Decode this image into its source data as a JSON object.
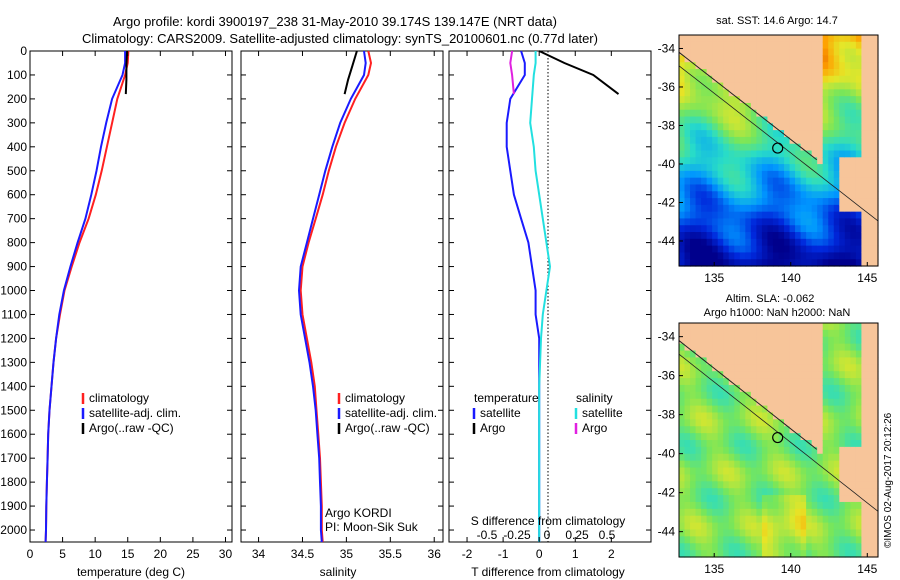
{
  "header": {
    "line1": "Argo profile: kordi 3900197_238 31-May-2010 39.174S 139.147E (NRT data)",
    "line2": "Climatology: CARS2009. Satellite-adjusted climatology: synTS_20100601.nc (0.77d later)"
  },
  "watermark": "©IMOS 02-Aug-2017 20:12:26",
  "colors": {
    "clim": "#ff2020",
    "sat": "#1a1aff",
    "argo": "#000000",
    "sal_sat": "#22e0e0",
    "sal_argo": "#e020e0",
    "land": "#f7c59a",
    "box": "#000000"
  },
  "chart_data": [
    {
      "type": "line",
      "panel": "temperature",
      "xlabel": "temperature (deg C)",
      "xlim": [
        0,
        31
      ],
      "xticks": [
        0,
        5,
        10,
        15,
        20,
        25,
        30
      ],
      "ylim": [
        0,
        2050
      ],
      "yticks": [
        0,
        100,
        200,
        300,
        400,
        500,
        600,
        700,
        800,
        900,
        1000,
        1100,
        1200,
        1300,
        1400,
        1500,
        1600,
        1700,
        1800,
        1900,
        2000
      ],
      "legend": [
        "climatology",
        "satellite-adj. clim.",
        "Argo(..raw -QC)"
      ],
      "series": [
        {
          "name": "climatology",
          "color": "clim",
          "points": [
            [
              15.1,
              0
            ],
            [
              15.0,
              50
            ],
            [
              14.6,
              100
            ],
            [
              13.4,
              200
            ],
            [
              12.6,
              300
            ],
            [
              11.8,
              400
            ],
            [
              11.0,
              500
            ],
            [
              10.1,
              600
            ],
            [
              9.0,
              700
            ],
            [
              7.6,
              800
            ],
            [
              6.4,
              900
            ],
            [
              5.3,
              1000
            ],
            [
              4.6,
              1100
            ],
            [
              4.0,
              1200
            ],
            [
              3.6,
              1300
            ],
            [
              3.3,
              1400
            ],
            [
              3.0,
              1500
            ],
            [
              2.8,
              1600
            ],
            [
              2.7,
              1700
            ],
            [
              2.6,
              1800
            ],
            [
              2.5,
              1900
            ],
            [
              2.45,
              2000
            ],
            [
              2.4,
              2050
            ]
          ]
        },
        {
          "name": "satellite-adj. clim.",
          "color": "sat",
          "points": [
            [
              14.6,
              0
            ],
            [
              14.6,
              50
            ],
            [
              14.2,
              100
            ],
            [
              12.6,
              200
            ],
            [
              11.7,
              300
            ],
            [
              10.9,
              400
            ],
            [
              10.2,
              500
            ],
            [
              9.4,
              600
            ],
            [
              8.5,
              700
            ],
            [
              7.3,
              800
            ],
            [
              6.2,
              900
            ],
            [
              5.2,
              1000
            ],
            [
              4.5,
              1100
            ],
            [
              4.0,
              1200
            ],
            [
              3.6,
              1300
            ],
            [
              3.3,
              1400
            ],
            [
              3.0,
              1500
            ],
            [
              2.8,
              1600
            ],
            [
              2.7,
              1700
            ],
            [
              2.6,
              1800
            ],
            [
              2.5,
              1900
            ],
            [
              2.45,
              2000
            ],
            [
              2.4,
              2050
            ]
          ]
        },
        {
          "name": "Argo(..raw -QC)",
          "color": "argo",
          "points": [
            [
              14.9,
              0
            ],
            [
              14.8,
              60
            ],
            [
              14.8,
              120
            ],
            [
              14.7,
              180
            ]
          ]
        }
      ]
    },
    {
      "type": "line",
      "panel": "salinity",
      "xlabel": "salinity",
      "xlim": [
        33.8,
        36.1
      ],
      "xticks": [
        34,
        34.5,
        35,
        35.5,
        36
      ],
      "ylim": [
        0,
        2050
      ],
      "legend": [
        "climatology",
        "satellite-adj. clim.",
        "Argo(..raw -QC)"
      ],
      "annotation": [
        "Argo KORDI",
        "PI: Moon-Sik Suk"
      ],
      "series": [
        {
          "name": "climatology",
          "color": "clim",
          "points": [
            [
              35.25,
              0
            ],
            [
              35.28,
              50
            ],
            [
              35.25,
              100
            ],
            [
              35.1,
              200
            ],
            [
              34.98,
              300
            ],
            [
              34.88,
              400
            ],
            [
              34.8,
              500
            ],
            [
              34.73,
              600
            ],
            [
              34.65,
              700
            ],
            [
              34.57,
              800
            ],
            [
              34.5,
              900
            ],
            [
              34.48,
              1000
            ],
            [
              34.5,
              1100
            ],
            [
              34.55,
              1200
            ],
            [
              34.6,
              1300
            ],
            [
              34.64,
              1400
            ],
            [
              34.66,
              1500
            ],
            [
              34.68,
              1600
            ],
            [
              34.7,
              1700
            ],
            [
              34.71,
              1800
            ],
            [
              34.72,
              1900
            ],
            [
              34.72,
              2000
            ],
            [
              34.73,
              2050
            ]
          ]
        },
        {
          "name": "satellite-adj. clim.",
          "color": "sat",
          "points": [
            [
              35.2,
              0
            ],
            [
              35.22,
              50
            ],
            [
              35.2,
              100
            ],
            [
              35.05,
              200
            ],
            [
              34.93,
              300
            ],
            [
              34.84,
              400
            ],
            [
              34.76,
              500
            ],
            [
              34.69,
              600
            ],
            [
              34.62,
              700
            ],
            [
              34.55,
              800
            ],
            [
              34.48,
              900
            ],
            [
              34.46,
              1000
            ],
            [
              34.48,
              1100
            ],
            [
              34.53,
              1200
            ],
            [
              34.58,
              1300
            ],
            [
              34.62,
              1400
            ],
            [
              34.65,
              1500
            ],
            [
              34.67,
              1600
            ],
            [
              34.69,
              1700
            ],
            [
              34.7,
              1800
            ],
            [
              34.71,
              1900
            ],
            [
              34.71,
              2000
            ],
            [
              34.72,
              2050
            ]
          ]
        },
        {
          "name": "Argo(..raw -QC)",
          "color": "argo",
          "points": [
            [
              35.12,
              0
            ],
            [
              35.07,
              60
            ],
            [
              35.02,
              120
            ],
            [
              34.98,
              180
            ]
          ]
        }
      ]
    },
    {
      "type": "line",
      "panel": "difference",
      "xlabel": "T difference from climatology",
      "xlabel2": "S difference from climatology",
      "xlim": [
        -2.5,
        3.1
      ],
      "xticks": [
        -2,
        -1,
        0,
        1,
        2
      ],
      "x2ticks": [
        "-0.5",
        "-0.25",
        "0",
        "0.25",
        "0.5"
      ],
      "ylim": [
        0,
        2050
      ],
      "legend_left": [
        "temperature",
        "satellite",
        "Argo"
      ],
      "legend_right": [
        "salinity",
        "satellite",
        "Argo"
      ],
      "series": [
        {
          "name": "temperature satellite",
          "color": "sat",
          "points": [
            [
              -0.5,
              0
            ],
            [
              -0.4,
              50
            ],
            [
              -0.4,
              100
            ],
            [
              -0.8,
              200
            ],
            [
              -0.9,
              300
            ],
            [
              -0.9,
              400
            ],
            [
              -0.8,
              500
            ],
            [
              -0.7,
              600
            ],
            [
              -0.5,
              700
            ],
            [
              -0.3,
              800
            ],
            [
              -0.2,
              900
            ],
            [
              -0.1,
              1000
            ],
            [
              -0.1,
              1100
            ],
            [
              0,
              1200
            ],
            [
              0,
              1400
            ],
            [
              0,
              1600
            ],
            [
              0,
              1800
            ],
            [
              0,
              2050
            ]
          ]
        },
        {
          "name": "salinity satellite",
          "color": "sal_sat",
          "points": [
            [
              -0.1,
              0
            ],
            [
              -0.1,
              50
            ],
            [
              -0.15,
              100
            ],
            [
              -0.2,
              200
            ],
            [
              -0.25,
              300
            ],
            [
              -0.15,
              400
            ],
            [
              -0.1,
              500
            ],
            [
              0,
              600
            ],
            [
              0.1,
              700
            ],
            [
              0.2,
              800
            ],
            [
              0.3,
              900
            ],
            [
              0.2,
              1000
            ],
            [
              0.1,
              1100
            ],
            [
              0.05,
              1200
            ],
            [
              0,
              1400
            ],
            [
              0,
              1600
            ],
            [
              0,
              1800
            ],
            [
              0,
              2050
            ]
          ]
        },
        {
          "name": "temperature Argo",
          "color": "argo",
          "points": [
            [
              0,
              0
            ],
            [
              0.7,
              50
            ],
            [
              1.5,
              100
            ],
            [
              2.2,
              180
            ]
          ]
        },
        {
          "name": "salinity Argo",
          "color": "sal_argo",
          "points": [
            [
              -0.75,
              0
            ],
            [
              -0.8,
              50
            ],
            [
              -0.75,
              100
            ],
            [
              -0.7,
              180
            ]
          ]
        }
      ]
    },
    {
      "type": "heatmap",
      "panel": "SST map",
      "title": "sat. SST: 14.6 Argo: 14.7",
      "xticks": [
        135,
        140,
        145
      ],
      "yticks": [
        -34,
        -36,
        -38,
        -40,
        -42,
        -44
      ],
      "xlim": [
        132.7,
        145.7
      ],
      "ylim": [
        -45.3,
        -33.3
      ],
      "marker": [
        139.147,
        -39.174
      ]
    },
    {
      "type": "heatmap",
      "panel": "SLA map",
      "title": [
        "Altim. SLA: -0.062",
        "Argo h1000: NaN h2000: NaN"
      ],
      "xticks": [
        135,
        140,
        145
      ],
      "yticks": [
        -34,
        -36,
        -38,
        -40,
        -42,
        -44
      ],
      "xlim": [
        132.7,
        145.7
      ],
      "ylim": [
        -45.3,
        -33.3
      ],
      "marker": [
        139.147,
        -39.174
      ]
    }
  ]
}
